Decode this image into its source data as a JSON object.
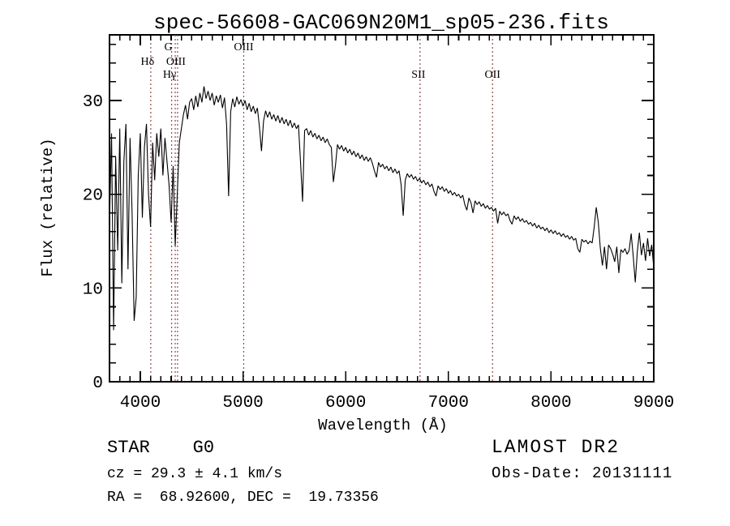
{
  "chart_data": {
    "type": "line",
    "title": "spec-56608-GAC069N20M1_sp05-236.fits",
    "xlabel": "Wavelength (Å)",
    "ylabel": "Flux (relative)",
    "xlim": [
      3700,
      9000
    ],
    "ylim": [
      0,
      37
    ],
    "x_ticks": [
      4000,
      5000,
      6000,
      7000,
      8000,
      9000
    ],
    "y_ticks": [
      0,
      10,
      20,
      30
    ],
    "x_minor_step": 100,
    "y_minor_step": 2,
    "grid": false,
    "legend": "none",
    "trace_color": "#000000",
    "marker_line_color": "#8f4b4b",
    "series": [
      {
        "name": "flux",
        "x_start": 3700,
        "x_step": 20,
        "values": [
          17.0,
          26.5,
          5.5,
          24.0,
          14.0,
          27.0,
          10.5,
          23.5,
          27.5,
          12.0,
          26.0,
          18.0,
          6.5,
          9.0,
          22.0,
          26.5,
          17.5,
          25.0,
          27.5,
          20.0,
          16.5,
          25.5,
          21.5,
          26.5,
          24.0,
          27.0,
          22.0,
          26.0,
          23.5,
          21.0,
          17.0,
          23.0,
          14.5,
          20.0,
          25.5,
          27.0,
          28.5,
          29.5,
          28.0,
          29.8,
          30.2,
          29.0,
          30.5,
          29.3,
          30.8,
          29.8,
          31.5,
          30.2,
          31.0,
          30.0,
          30.8,
          29.5,
          30.5,
          29.8,
          30.6,
          29.2,
          30.3,
          27.5,
          19.8,
          28.8,
          30.2,
          29.3,
          30.4,
          29.6,
          30.1,
          29.4,
          30.0,
          29.0,
          29.7,
          28.8,
          29.4,
          28.6,
          29.2,
          27.2,
          24.6,
          27.8,
          28.9,
          28.2,
          28.8,
          28.0,
          28.5,
          27.8,
          28.4,
          27.6,
          28.2,
          27.5,
          28.0,
          27.3,
          27.9,
          27.1,
          27.6,
          27.0,
          27.4,
          23.5,
          19.2,
          26.8,
          27.0,
          26.3,
          26.8,
          26.1,
          26.5,
          25.9,
          26.3,
          25.7,
          26.1,
          25.5,
          25.9,
          25.3,
          25.0,
          21.3,
          23.0,
          25.3,
          24.8,
          25.2,
          24.6,
          25.0,
          24.4,
          24.8,
          24.2,
          24.6,
          24.0,
          24.4,
          23.8,
          24.2,
          23.6,
          24.0,
          23.5,
          23.9,
          23.3,
          22.5,
          21.8,
          23.4,
          22.9,
          23.2,
          22.7,
          23.0,
          22.5,
          22.9,
          22.3,
          22.7,
          22.2,
          22.5,
          21.0,
          17.7,
          21.5,
          22.2,
          21.8,
          22.1,
          21.6,
          21.9,
          21.4,
          21.7,
          21.2,
          21.5,
          21.0,
          21.3,
          20.8,
          21.1,
          20.3,
          19.8,
          20.9,
          20.5,
          20.8,
          20.3,
          20.6,
          20.1,
          20.4,
          19.9,
          20.2,
          19.8,
          20.0,
          19.6,
          19.9,
          18.9,
          18.3,
          19.6,
          19.1,
          18.0,
          19.3,
          18.9,
          19.2,
          18.7,
          19.0,
          18.5,
          18.8,
          18.4,
          18.6,
          18.2,
          18.5,
          16.9,
          18.2,
          17.8,
          18.1,
          17.7,
          17.9,
          17.2,
          16.8,
          17.7,
          17.3,
          17.6,
          17.1,
          17.4,
          17.0,
          17.2,
          16.8,
          17.0,
          16.6,
          16.9,
          16.4,
          16.7,
          16.3,
          16.5,
          16.1,
          16.4,
          15.9,
          16.2,
          15.8,
          16.1,
          15.7,
          15.9,
          15.5,
          15.8,
          15.4,
          15.6,
          15.2,
          15.5,
          15.1,
          15.3,
          14.2,
          13.8,
          15.2,
          14.9,
          15.1,
          14.7,
          15.0,
          14.8,
          16.5,
          18.6,
          17.0,
          14.2,
          12.4,
          14.4,
          12.0,
          14.6,
          14.2,
          13.6,
          12.8,
          14.4,
          11.6,
          14.1,
          13.8,
          14.2,
          13.6,
          14.0,
          15.8,
          13.4,
          10.6,
          13.9,
          15.9,
          13.5,
          14.8,
          12.9,
          15.3,
          13.4,
          14.6,
          12.2
        ]
      }
    ],
    "spectral_lines": [
      {
        "label": "Hδ",
        "wavelength": 4102,
        "row": 1,
        "dx": -4
      },
      {
        "label": "G",
        "wavelength": 4305,
        "row": 0,
        "dx": -4
      },
      {
        "label": "OIII",
        "wavelength": 4363,
        "row": 1,
        "dx": -2
      },
      {
        "label": "Hγ",
        "wavelength": 4340,
        "row": 2,
        "dx": -7
      },
      {
        "label": "OIII",
        "wavelength": 5007,
        "row": 0,
        "dx": 0
      },
      {
        "label": "SII",
        "wavelength": 6724,
        "row": 2,
        "dx": -2
      },
      {
        "label": "OII",
        "wavelength": 7430,
        "row": 2,
        "dx": 0
      }
    ]
  },
  "footer": {
    "class_line": "STAR    G0",
    "cz_line": "cz = 29.3 ± 4.1 km/s",
    "radec_line": "RA =  68.92600, DEC =  19.73356",
    "survey": "LAMOST DR2",
    "obs_date_line": "Obs-Date: 20131111"
  }
}
